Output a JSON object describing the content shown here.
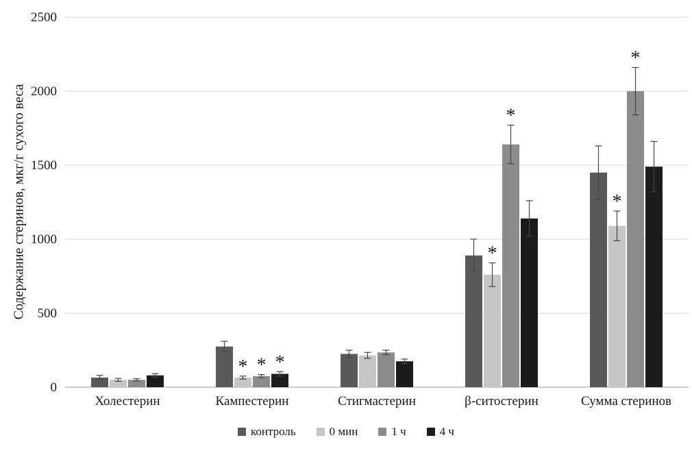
{
  "chart_data": {
    "type": "bar",
    "title": "",
    "xlabel": "",
    "ylabel": "Содержание стеринов, мкг/г сухого веса",
    "ylim": [
      0,
      2500
    ],
    "yticks": [
      0,
      500,
      1000,
      1500,
      2000,
      2500
    ],
    "grid": true,
    "legend_position": "bottom",
    "significance_marker": "*",
    "categories": [
      "Холестерин",
      "Кампестерин",
      "Стигмастерин",
      "β-ситостерин",
      "Сумма стеринов"
    ],
    "series": [
      {
        "name": "контроль",
        "color": "#595959",
        "values": [
          65,
          275,
          225,
          890,
          1450
        ],
        "errors": [
          15,
          35,
          25,
          110,
          180
        ],
        "significant": [
          false,
          false,
          false,
          false,
          false
        ]
      },
      {
        "name": "0 мин",
        "color": "#c6c6c6",
        "values": [
          50,
          65,
          215,
          760,
          1090
        ],
        "errors": [
          10,
          10,
          20,
          80,
          100
        ],
        "significant": [
          false,
          true,
          false,
          true,
          true
        ]
      },
      {
        "name": "1 ч",
        "color": "#8c8c8c",
        "values": [
          50,
          75,
          235,
          1640,
          2000
        ],
        "errors": [
          8,
          10,
          15,
          130,
          160
        ],
        "significant": [
          false,
          true,
          false,
          true,
          true
        ]
      },
      {
        "name": "4 ч",
        "color": "#1c1c1c",
        "values": [
          80,
          90,
          175,
          1140,
          1490
        ],
        "errors": [
          12,
          15,
          15,
          120,
          170
        ],
        "significant": [
          false,
          true,
          false,
          false,
          false
        ]
      }
    ]
  }
}
